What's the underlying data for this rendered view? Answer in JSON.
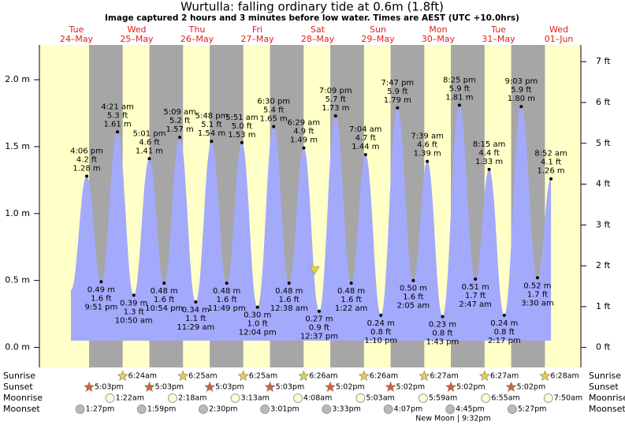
{
  "chart_data": {
    "type": "tide",
    "title": "Wurtulla: falling  ordinary tide at 0.6m (1.8ft)",
    "subtitle": "Image captured 2 hours and 3 minutes before low water. Times are AEST (UTC +10.0hrs)",
    "days": [
      {
        "dow": "Tue",
        "date": "24–May"
      },
      {
        "dow": "Wed",
        "date": "25–May"
      },
      {
        "dow": "Thu",
        "date": "26–May"
      },
      {
        "dow": "Fri",
        "date": "27–May"
      },
      {
        "dow": "Sat",
        "date": "28–May"
      },
      {
        "dow": "Sun",
        "date": "29–May"
      },
      {
        "dow": "Mon",
        "date": "30–May"
      },
      {
        "dow": "Tue",
        "date": "31–May"
      },
      {
        "dow": "Wed",
        "date": "01–Jun"
      }
    ],
    "tides": {
      "times": [
        "4:06 pm",
        "9:51 pm",
        "4:21 am",
        "10:50 am",
        "5:01 pm",
        "10:54 pm",
        "5:09 am",
        "11:29 am",
        "5:48 pm",
        "11:49 pm",
        "5:51 am",
        "12:04 pm",
        "6:30 pm",
        "12:38 am",
        "6:29 am",
        "12:37 pm",
        "7:09 pm",
        "1:22 am",
        "7:04 am",
        "1:10 pm",
        "7:47 pm",
        "2:05 am",
        "7:39 am",
        "1:43 pm",
        "8:25 pm",
        "2:47 am",
        "8:15 am",
        "2:17 pm",
        "9:03 pm",
        "3:30 am",
        "8:52 am"
      ],
      "values": [
        1.28,
        0.49,
        1.61,
        0.39,
        1.41,
        0.48,
        1.57,
        0.34,
        1.54,
        0.48,
        1.53,
        0.3,
        1.65,
        0.48,
        1.49,
        0.27,
        1.73,
        0.48,
        1.44,
        0.24,
        1.79,
        0.5,
        1.39,
        0.23,
        1.81,
        0.51,
        1.33,
        0.24,
        1.8,
        0.52,
        1.26
      ],
      "value_labels": [
        "1.28 m",
        "0.49 m",
        "1.61 m",
        "0.39 m",
        "1.41 m",
        "0.48 m",
        "1.57 m",
        "0.34 m",
        "1.54 m",
        "0.48 m",
        "1.53 m",
        "0.30 m",
        "1.65 m",
        "0.48 m",
        "1.49 m",
        "0.27 m",
        "1.73 m",
        "0.48 m",
        "1.44 m",
        "0.24 m",
        "1.79 m",
        "0.50 m",
        "1.39 m",
        "0.23 m",
        "1.81 m",
        "0.51 m",
        "1.33 m",
        "0.24 m",
        "1.80 m",
        "0.52 m",
        "1.26 m"
      ],
      "ft_labels": [
        "4.2 ft",
        "1.6 ft",
        "5.3 ft",
        "1.3 ft",
        "4.6 ft",
        "1.6 ft",
        "5.2 ft",
        "1.1 ft",
        "5.1 ft",
        "1.6 ft",
        "5.0 ft",
        "1.0 ft",
        "5.4 ft",
        "1.6 ft",
        "4.9 ft",
        "0.9 ft",
        "5.7 ft",
        "1.6 ft",
        "4.7 ft",
        "0.8 ft",
        "5.9 ft",
        "1.6 ft",
        "4.6 ft",
        "0.8 ft",
        "5.9 ft",
        "1.7 ft",
        "4.4 ft",
        "0.8 ft",
        "5.9 ft",
        "1.7 ft",
        "4.1 ft"
      ],
      "color": "#a3a9fb"
    },
    "ylim": [
      -0.15,
      2.26
    ],
    "yticks": [
      {
        "value": 0,
        "label": "0.0 m"
      },
      {
        "value": 0.5,
        "label": "0.5 m"
      },
      {
        "value": 1,
        "label": "1.0 m"
      },
      {
        "value": 1.5,
        "label": "1.5 m"
      },
      {
        "value": 2,
        "label": "2.0 m"
      }
    ],
    "y2lim": [
      -0.49,
      7.41
    ],
    "y2ticks": [
      {
        "value": 0,
        "label": "0 ft"
      },
      {
        "value": 1,
        "label": "1 ft"
      },
      {
        "value": 2,
        "label": "2 ft"
      },
      {
        "value": 3,
        "label": "3 ft"
      },
      {
        "value": 4,
        "label": "4 ft"
      },
      {
        "value": 5,
        "label": "5 ft"
      },
      {
        "value": 6,
        "label": "6 ft"
      },
      {
        "value": 7,
        "label": "7 ft"
      }
    ],
    "rows": [
      {
        "name": "Sunrise",
        "times": [
          null,
          "6:24am",
          "6:25am",
          "6:25am",
          "6:26am",
          "6:26am",
          "6:27am",
          "6:27am",
          "6:28am"
        ]
      },
      {
        "name": "Sunset",
        "times": [
          "5:03pm",
          "5:03pm",
          "5:03pm",
          "5:03pm",
          "5:02pm",
          "5:02pm",
          "5:02pm",
          "5:02pm",
          null
        ]
      },
      {
        "name": "Moonrise",
        "times": [
          null,
          "1:22am",
          "2:18am",
          "3:13am",
          "4:08am",
          "5:03am",
          "5:59am",
          "6:55am",
          "7:50am"
        ]
      },
      {
        "name": "Moonset",
        "times": [
          "1:27pm",
          "1:59pm",
          "2:30pm",
          "3:01pm",
          "3:33pm",
          "4:07pm",
          "4:45pm",
          "5:27pm",
          null
        ]
      }
    ],
    "moon_phase": "New Moon | 9:32pm"
  }
}
